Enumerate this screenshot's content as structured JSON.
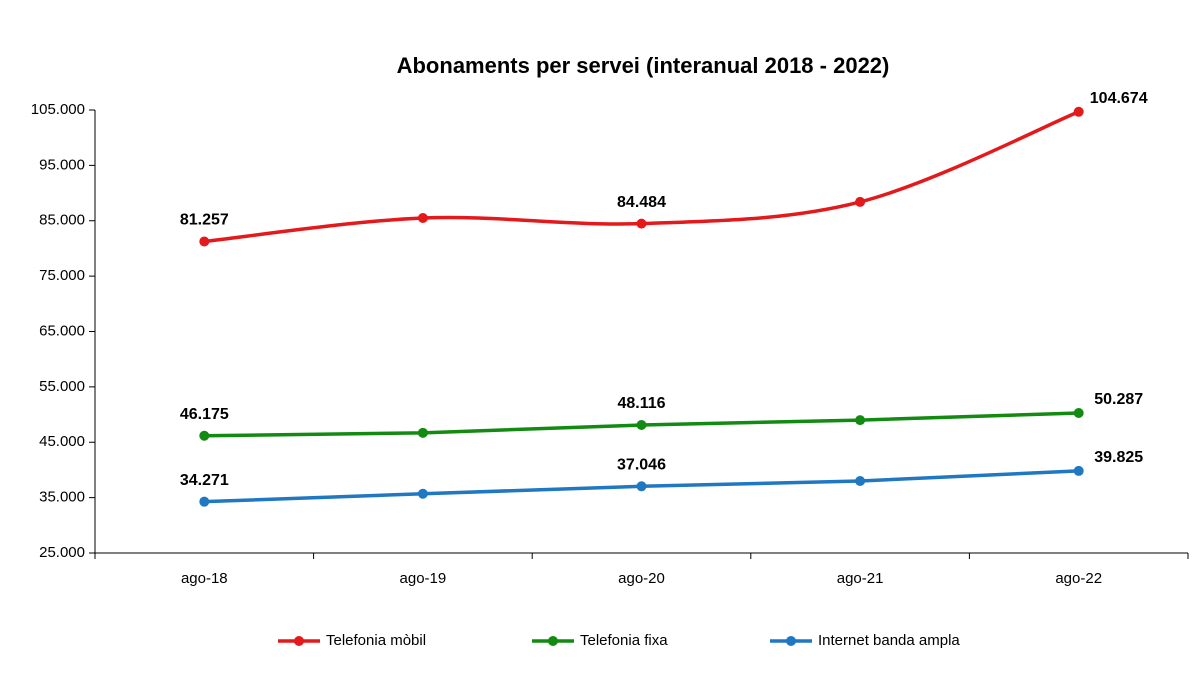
{
  "chart_data": {
    "type": "line",
    "title": "Abonaments per servei (interanual 2018 - 2022)",
    "categories": [
      "ago-18",
      "ago-19",
      "ago-20",
      "ago-21",
      "ago-22"
    ],
    "series": [
      {
        "name": "Telefonia mòbil",
        "color": "#e3191c",
        "smooth": true,
        "values": [
          81257,
          85500,
          84484,
          88400,
          104674
        ],
        "value_labels": [
          "81.257",
          null,
          "84.484",
          null,
          "104.674"
        ]
      },
      {
        "name": "Telefonia fixa",
        "color": "#138a12",
        "values": [
          46175,
          46700,
          48116,
          49000,
          50287
        ],
        "value_labels": [
          "46.175",
          null,
          "48.116",
          null,
          "50.287"
        ]
      },
      {
        "name": "Internet banda ampla",
        "color": "#1f78c1",
        "values": [
          34271,
          35700,
          37046,
          38000,
          39825
        ],
        "value_labels": [
          "34.271",
          null,
          "37.046",
          null,
          "39.825"
        ]
      }
    ],
    "ylim": [
      25000,
      105000
    ],
    "yticks": [
      {
        "value": 25000,
        "label": "25.000"
      },
      {
        "value": 35000,
        "label": "35.000"
      },
      {
        "value": 45000,
        "label": "45.000"
      },
      {
        "value": 55000,
        "label": "55.000"
      },
      {
        "value": 65000,
        "label": "65.000"
      },
      {
        "value": 75000,
        "label": "75.000"
      },
      {
        "value": 85000,
        "label": "85.000"
      },
      {
        "value": 95000,
        "label": "95.000"
      },
      {
        "value": 105000,
        "label": "105.000"
      }
    ],
    "grid": false,
    "legend": "bottom"
  }
}
